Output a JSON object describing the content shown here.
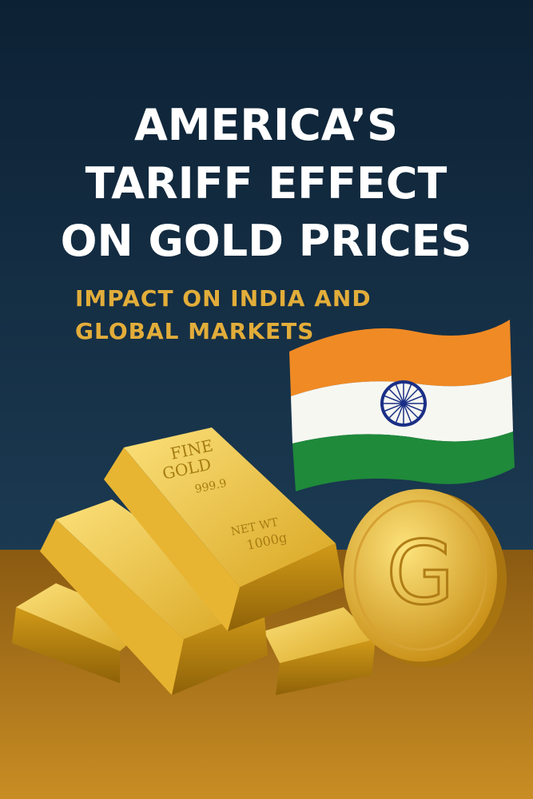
{
  "header": {
    "title_lines": [
      "AMERICA’S",
      "TARIFF EFFECT",
      "ON GOLD PRICES"
    ],
    "subtitle_lines": [
      "IMPACT ON INDIA AND",
      "GLOBAL MARKETS"
    ]
  },
  "bar": {
    "line1": "FINE",
    "line2": "GOLD",
    "purity": "999.9",
    "weight_label": "NET WT",
    "weight": "1000g"
  },
  "coin": {
    "letter": "G"
  }
}
